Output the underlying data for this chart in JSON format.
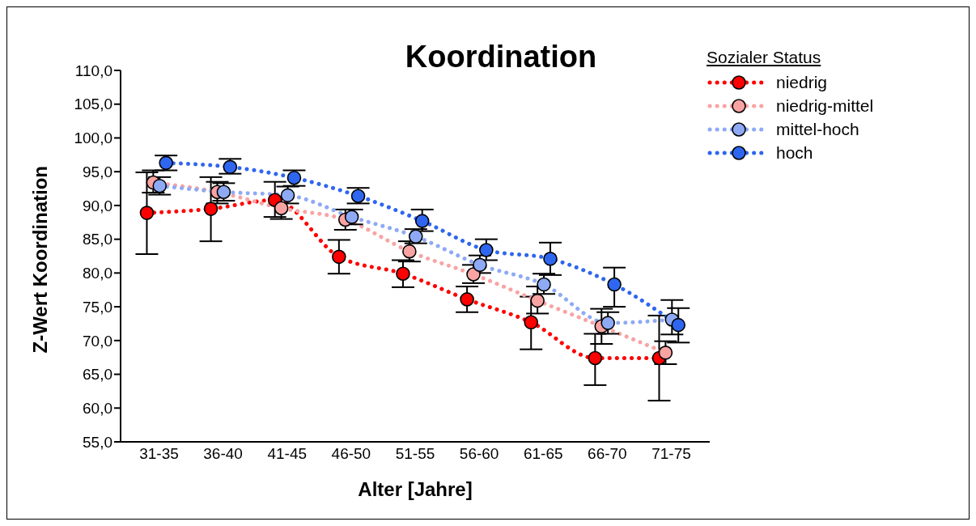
{
  "chart_data": {
    "type": "line",
    "title": "Koordination",
    "xlabel": "Alter [Jahre]",
    "ylabel": "Z-Wert Koordination",
    "legend_title": "Sozialer Status",
    "categories": [
      "31-35",
      "36-40",
      "41-45",
      "46-50",
      "51-55",
      "56-60",
      "61-65",
      "66-70",
      "71-75"
    ],
    "series": [
      {
        "name": "niedrig",
        "color": "#ff0000",
        "values": [
          88.9,
          89.5,
          90.8,
          82.4,
          79.9,
          76.1,
          72.7,
          67.4,
          67.4
        ],
        "errors": [
          [
            82.8,
            94.9
          ],
          [
            84.7,
            94.2
          ],
          [
            88.3,
            93.5
          ],
          [
            79.9,
            84.9
          ],
          [
            77.9,
            81.9
          ],
          [
            74.2,
            78.0
          ],
          [
            68.7,
            76.5
          ],
          [
            63.4,
            71.0
          ],
          [
            61.1,
            73.7
          ]
        ]
      },
      {
        "name": "niedrig-mittel",
        "color": "#f9a3a3",
        "values": [
          93.4,
          92.0,
          89.6,
          87.9,
          83.2,
          79.8,
          75.9,
          72.1,
          68.2
        ],
        "errors": [
          [
            91.9,
            95.2
          ],
          [
            90.3,
            93.5
          ],
          [
            88.0,
            91.0
          ],
          [
            86.4,
            89.4
          ],
          [
            81.7,
            84.7
          ],
          [
            78.5,
            81.2
          ],
          [
            74.0,
            78.0
          ],
          [
            69.5,
            74.7
          ],
          [
            66.5,
            69.9
          ]
        ]
      },
      {
        "name": "mittel-hoch",
        "color": "#8eaaf5",
        "values": [
          92.9,
          92.0,
          91.5,
          88.3,
          85.4,
          81.2,
          78.3,
          72.6,
          73.1
        ],
        "errors": [
          [
            91.6,
            94.2
          ],
          [
            90.7,
            93.3
          ],
          [
            90.3,
            92.8
          ],
          [
            87.2,
            89.4
          ],
          [
            84.4,
            86.5
          ],
          [
            80.0,
            82.6
          ],
          [
            76.9,
            79.9
          ],
          [
            71.0,
            74.2
          ],
          [
            70.9,
            76.0
          ]
        ]
      },
      {
        "name": "hoch",
        "color": "#2f66f0",
        "values": [
          96.3,
          95.7,
          94.1,
          91.4,
          87.7,
          83.4,
          82.1,
          78.3,
          72.3
        ],
        "errors": [
          [
            95.2,
            97.4
          ],
          [
            94.7,
            96.9
          ],
          [
            92.9,
            95.2
          ],
          [
            90.3,
            92.6
          ],
          [
            86.2,
            89.4
          ],
          [
            81.9,
            85.0
          ],
          [
            79.7,
            84.5
          ],
          [
            75.0,
            80.8
          ],
          [
            69.7,
            74.8
          ]
        ]
      }
    ],
    "ylim": [
      55,
      110
    ],
    "yticks": [
      {
        "value": 55,
        "label": "55,0"
      },
      {
        "value": 60,
        "label": "60,0"
      },
      {
        "value": 65,
        "label": "65,0"
      },
      {
        "value": 70,
        "label": "70,0"
      },
      {
        "value": 75,
        "label": "75,0"
      },
      {
        "value": 80,
        "label": "80,0"
      },
      {
        "value": 85,
        "label": "85,0"
      },
      {
        "value": 90,
        "label": "90,0"
      },
      {
        "value": 95,
        "label": "95,0"
      },
      {
        "value": 100,
        "label": "100,0"
      },
      {
        "value": 105,
        "label": "105,0"
      },
      {
        "value": 110,
        "label": "110,0"
      }
    ],
    "grid": false,
    "legend": "top right",
    "marker": "circle",
    "line_style": "dotted"
  }
}
